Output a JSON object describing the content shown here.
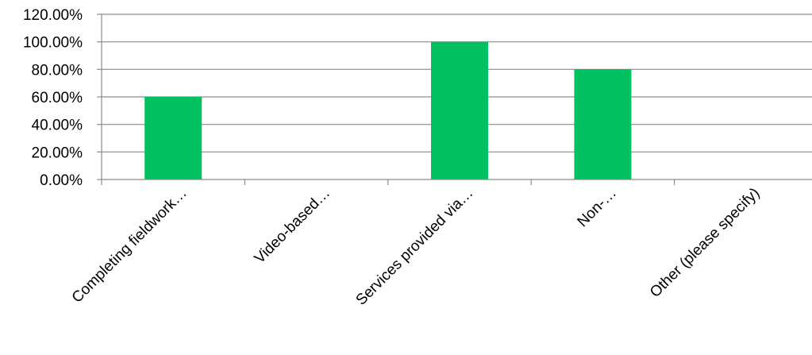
{
  "chart_data": {
    "type": "bar",
    "categories": [
      "Completing fieldwork…",
      "Video-based…",
      "Services provided via…",
      "Non-…",
      "Other (please specify)"
    ],
    "values": [
      60,
      0,
      100,
      80,
      0
    ],
    "ylim": [
      0,
      120
    ],
    "yticks": [
      {
        "value": 0,
        "label": "0.00%"
      },
      {
        "value": 20,
        "label": "20.00%"
      },
      {
        "value": 40,
        "label": "40.00%"
      },
      {
        "value": 60,
        "label": "60.00%"
      },
      {
        "value": 80,
        "label": "80.00%"
      },
      {
        "value": 100,
        "label": "100.00%"
      },
      {
        "value": 120,
        "label": "120.00%"
      }
    ],
    "grid": true,
    "legend": "none",
    "bar_color": "#00c060"
  }
}
